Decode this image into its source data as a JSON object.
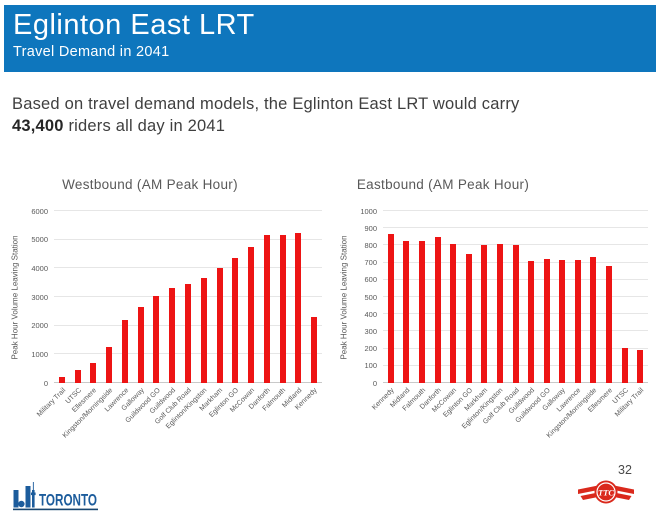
{
  "header": {
    "title": "Eglinton East LRT",
    "subtitle": "Travel Demand in 2041"
  },
  "intro": {
    "line1": "Based on travel demand models, the Eglinton East LRT would carry",
    "riders_bold": "43,400",
    "line2_rest": " riders all day in 2041"
  },
  "chart_data": [
    {
      "type": "bar",
      "title": "Westbound (AM Peak Hour)",
      "xlabel": "",
      "ylabel": "Peak Hour Volume Leaving Station",
      "ylim": [
        0,
        6000
      ],
      "ytick_step": 1000,
      "grid": true,
      "legend": "none",
      "bar_color": "#ed1414",
      "categories": [
        "Military Trail",
        "UTSC",
        "Ellesmere",
        "Kingston/Morningside",
        "Lawrence",
        "Galloway",
        "Guildwood GO",
        "Guildwood",
        "Golf Club Road",
        "Eglinton/Kingston",
        "Markham",
        "Eglinton GO",
        "McCowan",
        "Danforth",
        "Falmouth",
        "Midland",
        "Kennedy"
      ],
      "values": [
        200,
        450,
        700,
        1250,
        2200,
        2650,
        3050,
        3300,
        3450,
        3650,
        4000,
        4350,
        4750,
        5150,
        5150,
        5250,
        2300
      ]
    },
    {
      "type": "bar",
      "title": "Eastbound (AM Peak Hour)",
      "xlabel": "",
      "ylabel": "Peak Hour Volume Leaving Station",
      "ylim": [
        0,
        1000
      ],
      "ytick_step": 100,
      "grid": true,
      "legend": "none",
      "bar_color": "#ed1414",
      "categories": [
        "Kennedy",
        "Midland",
        "Falmouth",
        "Danforth",
        "McCowan",
        "Eglinton GO",
        "Markham",
        "Eglinton/Kingston",
        "Golf Club Road",
        "Guildwood",
        "Guildwood GO",
        "Galloway",
        "Lawrence",
        "Kingston/Morningside",
        "Ellesmere",
        "UTSC",
        "Military Trail"
      ],
      "values": [
        865,
        825,
        825,
        850,
        810,
        750,
        805,
        810,
        800,
        710,
        720,
        715,
        715,
        735,
        680,
        205,
        190
      ]
    }
  ],
  "footer": {
    "toronto_wordmark": "TORONTO",
    "ttc_monogram": "TTC",
    "page_number": "32"
  },
  "colors": {
    "header_bg": "#0e76bd",
    "bar_red": "#ed1414",
    "toronto_blue": "#1c5c9c",
    "ttc_red": "#da291c",
    "axis_text": "#595959"
  }
}
